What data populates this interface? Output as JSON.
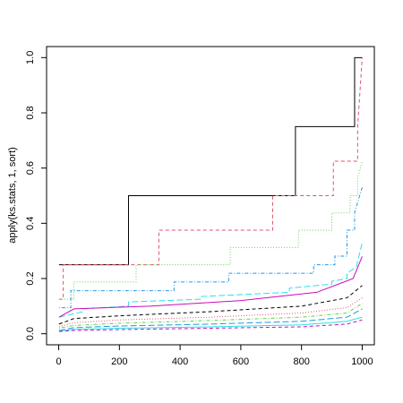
{
  "chart_data": {
    "type": "line",
    "y_label": "apply(ks.stats, 1, sort)",
    "xlim": [
      -40,
      1040
    ],
    "ylim": [
      -0.04,
      1.04
    ],
    "xticks": [
      0,
      200,
      400,
      600,
      800,
      1000
    ],
    "yticks": [
      {
        "value": 0,
        "label": "0.0"
      },
      {
        "value": 0.2,
        "label": "0.2"
      },
      {
        "value": 0.4,
        "label": "0.4"
      },
      {
        "value": 0.6,
        "label": "0.6"
      },
      {
        "value": 0.8,
        "label": "0.8"
      },
      {
        "value": 1,
        "label": "1.0"
      }
    ],
    "series": [
      {
        "color": "#000000",
        "linestyle": "solid",
        "x": [
          1,
          230,
          230,
          780,
          780,
          975,
          975,
          1000
        ],
        "values": [
          0.25,
          0.25,
          0.5,
          0.5,
          0.75,
          0.75,
          1,
          1
        ]
      },
      {
        "color": "#df536b",
        "linestyle": "dashed",
        "x": [
          1,
          15,
          15,
          330,
          330,
          705,
          705,
          905,
          905,
          985,
          985,
          1000
        ],
        "values": [
          0.125,
          0.125,
          0.25,
          0.25,
          0.375,
          0.375,
          0.5,
          0.5,
          0.625,
          0.625,
          0.75,
          1
        ]
      },
      {
        "color": "#61d04f",
        "linestyle": "dotted",
        "x": [
          1,
          50,
          50,
          255,
          255,
          565,
          565,
          790,
          790,
          900,
          900,
          960,
          960,
          985,
          985,
          1000
        ],
        "values": [
          0.125,
          0.125,
          0.1875,
          0.1875,
          0.25,
          0.25,
          0.3125,
          0.3125,
          0.375,
          0.375,
          0.4375,
          0.4375,
          0.5,
          0.5,
          0.5625,
          0.625
        ]
      },
      {
        "color": "#2297e6",
        "linestyle": "dotdash",
        "x": [
          1,
          40,
          40,
          380,
          380,
          560,
          560,
          840,
          840,
          910,
          910,
          950,
          950,
          975,
          975,
          1000
        ],
        "values": [
          0.094,
          0.094,
          0.156,
          0.156,
          0.1875,
          0.1875,
          0.219,
          0.219,
          0.25,
          0.25,
          0.281,
          0.281,
          0.375,
          0.375,
          0.44,
          0.53
        ]
      },
      {
        "color": "#28e2e5",
        "linestyle": "longdash",
        "x": [
          1,
          80,
          80,
          230,
          230,
          470,
          470,
          760,
          760,
          900,
          900,
          950,
          950,
          980,
          1000
        ],
        "values": [
          0.06,
          0.08,
          0.09,
          0.1,
          0.115,
          0.125,
          0.135,
          0.15,
          0.165,
          0.18,
          0.19,
          0.2,
          0.22,
          0.24,
          0.33
        ]
      },
      {
        "color": "#cd0bbc",
        "linestyle": "solid",
        "x": [
          1,
          50,
          300,
          600,
          850,
          970,
          1000
        ],
        "values": [
          0.06,
          0.09,
          0.1,
          0.12,
          0.15,
          0.2,
          0.28
        ]
      },
      {
        "color": "#000000",
        "linestyle": "dashed",
        "x": [
          1,
          50,
          200,
          500,
          800,
          950,
          1000
        ],
        "values": [
          0.035,
          0.055,
          0.065,
          0.08,
          0.1,
          0.13,
          0.175
        ]
      },
      {
        "color": "#df536b",
        "linestyle": "dotted",
        "x": [
          1,
          50,
          200,
          500,
          800,
          950,
          1000
        ],
        "values": [
          0.025,
          0.04,
          0.05,
          0.06,
          0.075,
          0.095,
          0.13
        ]
      },
      {
        "color": "#61d04f",
        "linestyle": "dotdash",
        "x": [
          1,
          50,
          200,
          500,
          800,
          950,
          1000
        ],
        "values": [
          0.02,
          0.03,
          0.038,
          0.048,
          0.06,
          0.075,
          0.11
        ]
      },
      {
        "color": "#2297e6",
        "linestyle": "longdash",
        "x": [
          1,
          50,
          200,
          500,
          800,
          950,
          1000
        ],
        "values": [
          0.012,
          0.022,
          0.028,
          0.035,
          0.045,
          0.06,
          0.09
        ]
      },
      {
        "color": "#28e2e5",
        "linestyle": "solid",
        "x": [
          1,
          50,
          200,
          500,
          800,
          950,
          1000
        ],
        "values": [
          0.01,
          0.016,
          0.02,
          0.025,
          0.032,
          0.045,
          0.06
        ]
      },
      {
        "color": "#cd0bbc",
        "linestyle": "dashed",
        "x": [
          1,
          50,
          200,
          500,
          800,
          950,
          1000
        ],
        "values": [
          0.008,
          0.012,
          0.015,
          0.02,
          0.025,
          0.035,
          0.05
        ]
      }
    ]
  }
}
